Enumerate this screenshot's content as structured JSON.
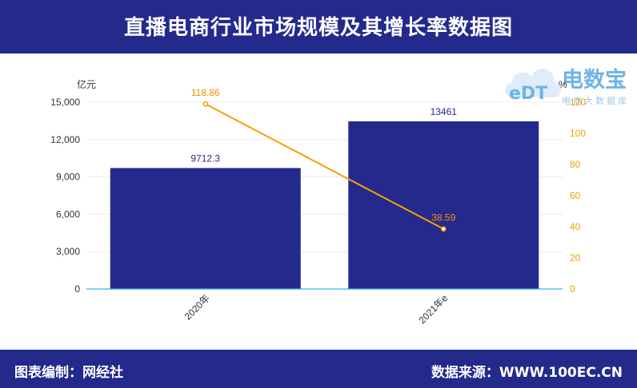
{
  "header": {
    "title": "直播电商行业市场规模及其增长率数据图"
  },
  "footer": {
    "left": "图表编制：网经社",
    "right": "数据来源：WWW.100EC.CN"
  },
  "watermark": {
    "brand": "电数宝",
    "sub": "电商大数据库",
    "mark": "eDT"
  },
  "colors": {
    "bar": "#242a8c",
    "line": "#f5a000",
    "header_bg": "#242a8c",
    "axis": "#3ab0e0"
  },
  "chart_data": {
    "type": "bar",
    "categories": [
      "2020年",
      "2021年e"
    ],
    "series": [
      {
        "type": "bar",
        "axis": "left",
        "values": [
          9712.3,
          13461
        ],
        "labels": [
          "9712.3",
          "13461"
        ]
      },
      {
        "type": "line",
        "axis": "right",
        "values": [
          118.86,
          38.59
        ],
        "labels": [
          "118.86",
          "38.59"
        ]
      }
    ],
    "y_left": {
      "unit": "亿元",
      "ylim": [
        0,
        15000
      ],
      "ticks": [
        "0",
        "3,000",
        "6,000",
        "9,000",
        "12,000",
        "15,000"
      ]
    },
    "y_right": {
      "unit": "%",
      "ylim": [
        0,
        120
      ],
      "ticks": [
        "0",
        "20",
        "40",
        "60",
        "80",
        "100",
        "120"
      ]
    },
    "grid": true
  }
}
